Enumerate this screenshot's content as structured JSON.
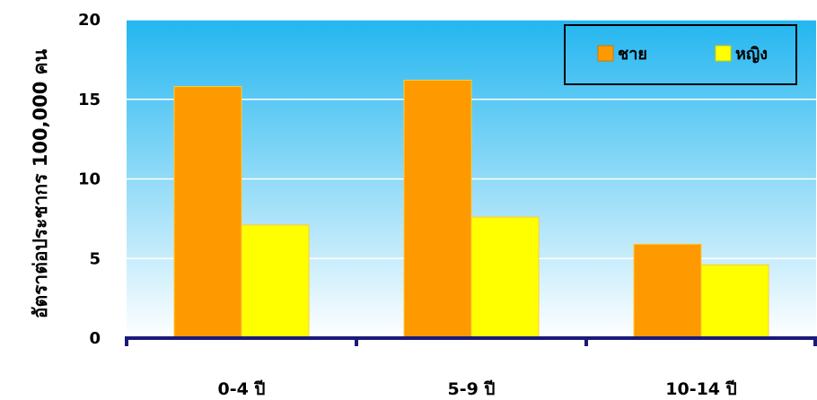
{
  "chart_data": {
    "type": "bar",
    "categories": [
      "0-4 ปี",
      "5-9 ปี",
      "10-14 ปี"
    ],
    "series": [
      {
        "name": "ชาย",
        "values": [
          15.8,
          16.2,
          5.9
        ],
        "color": "#ff9900"
      },
      {
        "name": "หญิง",
        "values": [
          7.1,
          7.6,
          4.6
        ],
        "color": "#ffff00"
      }
    ],
    "title": "",
    "xlabel": "",
    "ylabel": "อัตราต่อประชากร 100,000 คน",
    "ylim": [
      0,
      20
    ],
    "yticks": [
      0,
      5,
      10,
      15,
      20
    ],
    "grid": true,
    "legend_position": "top-right",
    "colors": {
      "plot_gradient_top": "#23b6f0",
      "plot_gradient_bottom": "#ffffff",
      "axis": "#1a1a7a",
      "grid": "#ffffff",
      "bar_border": "#ffcc33"
    }
  }
}
